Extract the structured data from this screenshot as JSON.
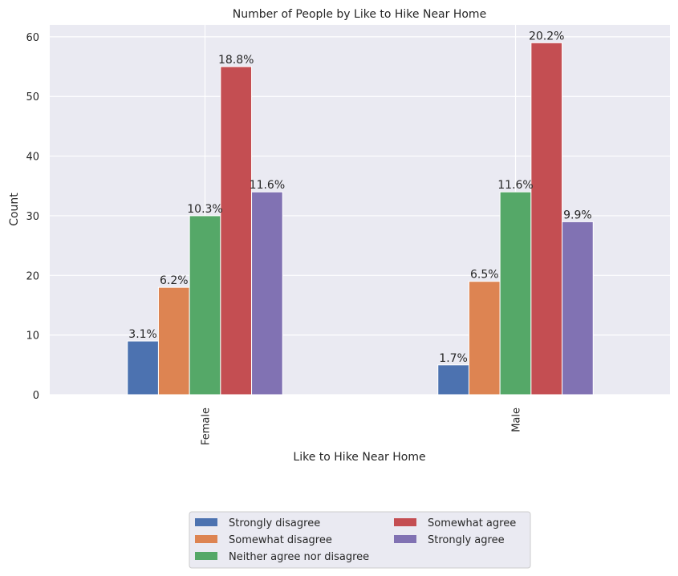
{
  "chart_data": {
    "type": "bar",
    "title": "Number of People by Like to Hike Near Home",
    "xlabel": "Like to Hike Near Home",
    "ylabel": "Count",
    "categories": [
      "Female",
      "Male"
    ],
    "ylim": [
      0,
      62
    ],
    "yticks": [
      0,
      10,
      20,
      30,
      40,
      50,
      60
    ],
    "grid": true,
    "legend_position": "bottom-center",
    "series": [
      {
        "name": "Strongly disagree",
        "color": "#4c72b0",
        "values": [
          9,
          5
        ],
        "labels": [
          "3.1%",
          "1.7%"
        ]
      },
      {
        "name": "Somewhat disagree",
        "color": "#dd8452",
        "values": [
          18,
          19
        ],
        "labels": [
          "6.2%",
          "6.5%"
        ]
      },
      {
        "name": "Neither agree nor disagree",
        "color": "#55a868",
        "values": [
          30,
          34
        ],
        "labels": [
          "10.3%",
          "11.6%"
        ]
      },
      {
        "name": "Somewhat agree",
        "color": "#c44e52",
        "values": [
          55,
          59
        ],
        "labels": [
          "18.8%",
          "20.2%"
        ]
      },
      {
        "name": "Strongly agree",
        "color": "#8172b3",
        "values": [
          34,
          29
        ],
        "labels": [
          "11.6%",
          "9.9%"
        ]
      }
    ]
  }
}
